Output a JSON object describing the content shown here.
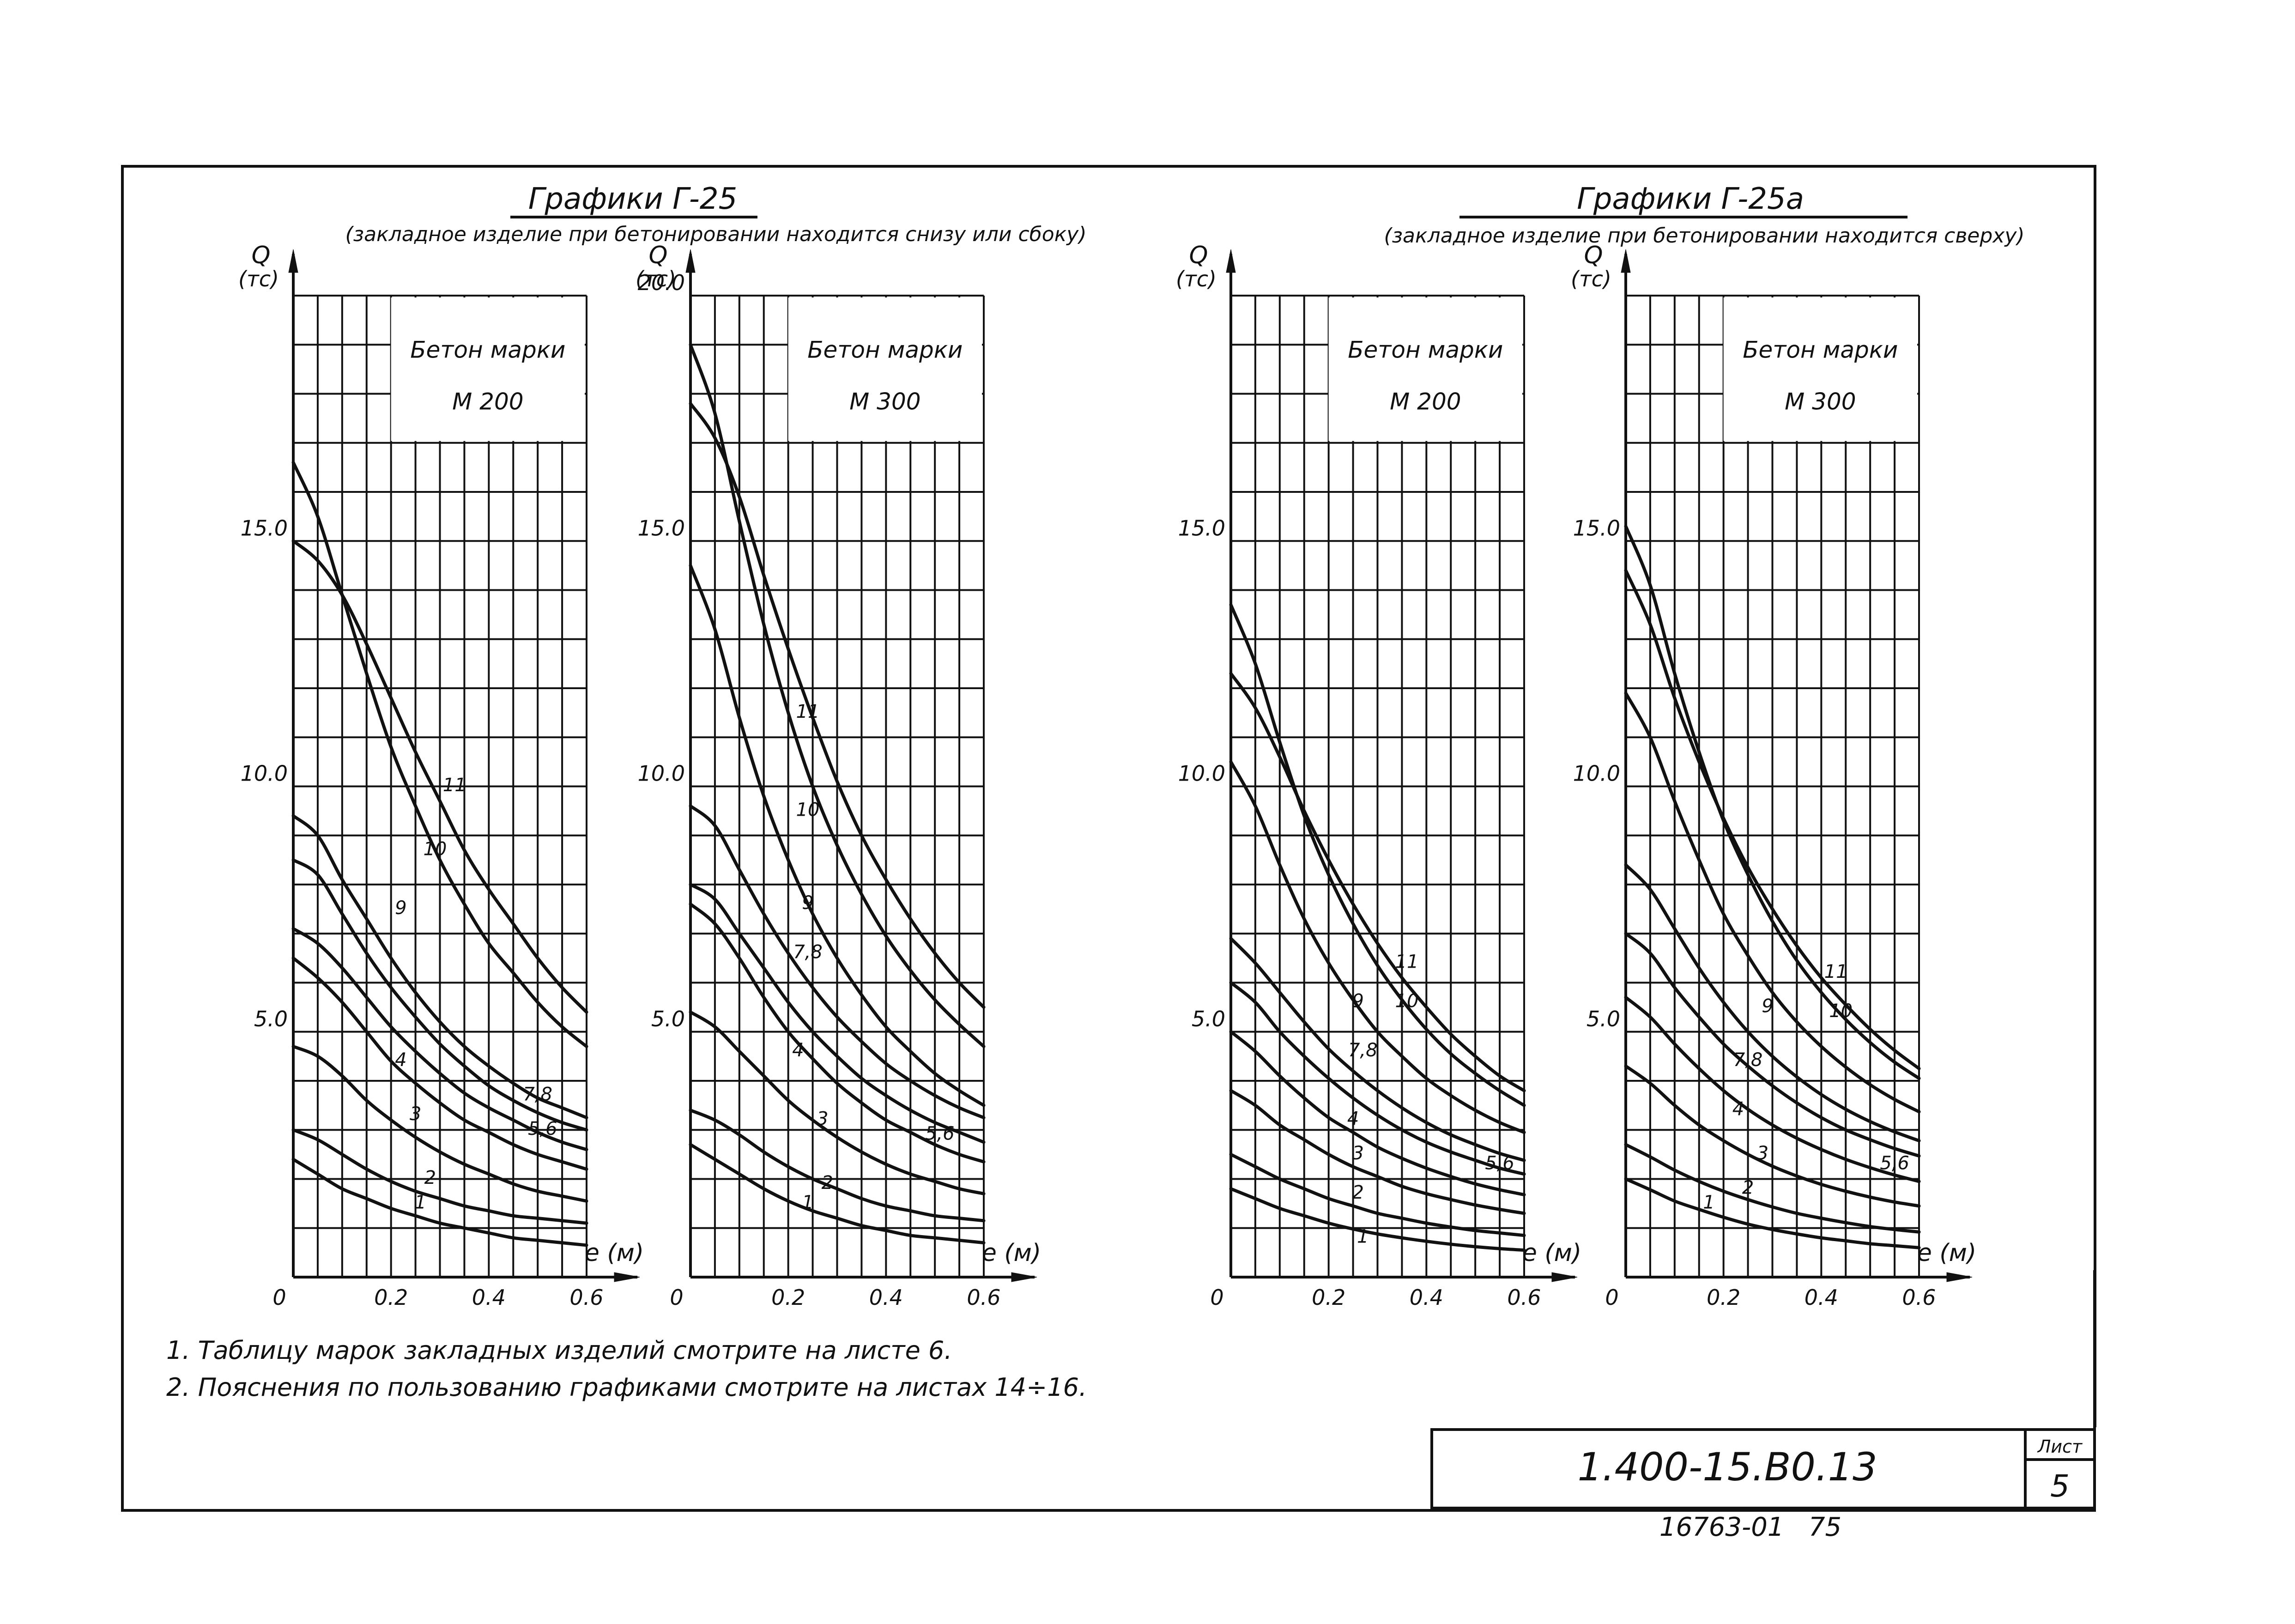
{
  "sheet": {
    "notes": [
      "1. Таблицу марок закладных изделий смотрите на листе 6.",
      "2. Пояснения по пользованию графиками смотрите на листах 14÷16."
    ],
    "stamp": {
      "code": "1.400-15.В0.13",
      "sheet_label": "Лист",
      "sheet_number": "5"
    },
    "bottom_reference": "16763-01   75"
  },
  "groups": [
    {
      "title": "Графики Г-25",
      "subtitle": "(закладное изделие при бетонировании находится снизу или сбоку)"
    },
    {
      "title": "Графики Г-25а",
      "subtitle": "(закладное изделие при бетонировании находится сверху)"
    }
  ],
  "chart_data": [
    {
      "type": "line",
      "group": 0,
      "title": "Бетон марки М 200",
      "ylabel": "Q (тс)",
      "xlabel": "e (м)",
      "xlim": [
        0,
        0.6
      ],
      "ylim": [
        0,
        20
      ],
      "x_ticks": [
        "0",
        "0.2",
        "0.4",
        "0.6"
      ],
      "y_ticks": [
        {
          "v": 5,
          "label": "5.0"
        },
        {
          "v": 10,
          "label": "10.0"
        },
        {
          "v": 15,
          "label": "15.0"
        }
      ],
      "x": [
        0,
        0.05,
        0.1,
        0.15,
        0.2,
        0.25,
        0.3,
        0.35,
        0.4,
        0.45,
        0.5,
        0.55,
        0.6
      ],
      "series": [
        {
          "name": "1",
          "values": [
            2.4,
            2.1,
            1.8,
            1.6,
            1.4,
            1.25,
            1.1,
            1.0,
            0.9,
            0.8,
            0.75,
            0.7,
            0.65
          ],
          "label_at": [
            0.26,
            1.4
          ]
        },
        {
          "name": "2",
          "values": [
            3.0,
            2.8,
            2.5,
            2.2,
            1.95,
            1.75,
            1.6,
            1.45,
            1.35,
            1.25,
            1.2,
            1.15,
            1.1
          ],
          "label_at": [
            0.28,
            1.9
          ]
        },
        {
          "name": "3",
          "values": [
            4.7,
            4.5,
            4.1,
            3.6,
            3.2,
            2.85,
            2.55,
            2.3,
            2.1,
            1.9,
            1.75,
            1.65,
            1.55
          ],
          "label_at": [
            0.25,
            3.2
          ]
        },
        {
          "name": "4",
          "values": [
            6.5,
            6.1,
            5.6,
            5.0,
            4.4,
            3.95,
            3.55,
            3.2,
            2.95,
            2.7,
            2.5,
            2.35,
            2.2
          ],
          "label_at": [
            0.22,
            4.3
          ]
        },
        {
          "name": "5, 6",
          "values": [
            7.1,
            6.8,
            6.3,
            5.7,
            5.1,
            4.6,
            4.15,
            3.75,
            3.45,
            3.2,
            2.95,
            2.75,
            2.6
          ],
          "label_at": [
            0.51,
            2.9
          ]
        },
        {
          "name": "7, 8",
          "values": [
            8.5,
            8.2,
            7.4,
            6.6,
            5.9,
            5.3,
            4.75,
            4.3,
            3.9,
            3.6,
            3.35,
            3.15,
            3.0
          ],
          "label_at": [
            0.5,
            3.6
          ]
        },
        {
          "name": "9",
          "values": [
            9.4,
            9.0,
            8.1,
            7.3,
            6.5,
            5.8,
            5.2,
            4.7,
            4.3,
            3.95,
            3.65,
            3.45,
            3.25
          ],
          "label_at": [
            0.22,
            7.4
          ]
        },
        {
          "name": "10",
          "values": [
            16.6,
            15.5,
            13.9,
            12.3,
            10.8,
            9.6,
            8.5,
            7.6,
            6.8,
            6.2,
            5.6,
            5.1,
            4.7
          ],
          "label_at": [
            0.29,
            8.6
          ]
        },
        {
          "name": "11",
          "values": [
            15.0,
            14.6,
            13.9,
            12.9,
            11.8,
            10.7,
            9.7,
            8.7,
            7.9,
            7.2,
            6.5,
            5.9,
            5.4
          ],
          "label_at": [
            0.33,
            9.9
          ]
        }
      ]
    },
    {
      "type": "line",
      "group": 0,
      "title": "Бетон марки М 300",
      "ylabel": "Q (тс)",
      "xlabel": "e (м)",
      "xlim": [
        0,
        0.6
      ],
      "ylim": [
        0,
        20
      ],
      "x_ticks": [
        "0",
        "0.2",
        "0.4",
        "0.6"
      ],
      "y_ticks": [
        {
          "v": 5,
          "label": "5.0"
        },
        {
          "v": 10,
          "label": "10.0"
        },
        {
          "v": 15,
          "label": "15.0"
        },
        {
          "v": 20,
          "label": "20.0"
        }
      ],
      "x": [
        0,
        0.05,
        0.1,
        0.15,
        0.2,
        0.25,
        0.3,
        0.35,
        0.4,
        0.45,
        0.5,
        0.55,
        0.6
      ],
      "series": [
        {
          "name": "1",
          "values": [
            2.7,
            2.4,
            2.1,
            1.8,
            1.55,
            1.35,
            1.2,
            1.05,
            0.95,
            0.85,
            0.8,
            0.75,
            0.7
          ],
          "label_at": [
            0.24,
            1.4
          ]
        },
        {
          "name": "2",
          "values": [
            3.4,
            3.2,
            2.9,
            2.55,
            2.25,
            2.0,
            1.8,
            1.6,
            1.45,
            1.35,
            1.25,
            1.2,
            1.15
          ],
          "label_at": [
            0.28,
            1.8
          ]
        },
        {
          "name": "3",
          "values": [
            5.4,
            5.1,
            4.6,
            4.1,
            3.6,
            3.2,
            2.85,
            2.55,
            2.3,
            2.1,
            1.95,
            1.8,
            1.7
          ],
          "label_at": [
            0.27,
            3.1
          ]
        },
        {
          "name": "4",
          "values": [
            7.6,
            7.2,
            6.5,
            5.7,
            5.0,
            4.45,
            3.95,
            3.55,
            3.2,
            2.95,
            2.7,
            2.5,
            2.35
          ],
          "label_at": [
            0.22,
            4.5
          ]
        },
        {
          "name": "5, 6",
          "values": [
            8.0,
            7.7,
            7.0,
            6.3,
            5.6,
            5.0,
            4.5,
            4.05,
            3.7,
            3.4,
            3.15,
            2.95,
            2.75
          ],
          "label_at": [
            0.51,
            2.8
          ]
        },
        {
          "name": "7, 8",
          "values": [
            9.6,
            9.2,
            8.3,
            7.4,
            6.6,
            5.9,
            5.3,
            4.8,
            4.35,
            4.0,
            3.7,
            3.45,
            3.25
          ],
          "label_at": [
            0.24,
            6.5
          ]
        },
        {
          "name": "9",
          "values": [
            14.5,
            13.2,
            11.4,
            9.8,
            8.5,
            7.4,
            6.5,
            5.75,
            5.1,
            4.6,
            4.15,
            3.8,
            3.5
          ],
          "label_at": [
            0.24,
            7.5
          ]
        },
        {
          "name": "10",
          "values": [
            19.0,
            17.6,
            15.4,
            13.3,
            11.5,
            10.0,
            8.8,
            7.8,
            6.95,
            6.25,
            5.65,
            5.15,
            4.7
          ],
          "label_at": [
            0.24,
            9.4
          ]
        },
        {
          "name": "11",
          "values": [
            17.8,
            17.1,
            15.9,
            14.3,
            12.8,
            11.4,
            10.1,
            9.0,
            8.1,
            7.3,
            6.6,
            6.0,
            5.5
          ],
          "label_at": [
            0.24,
            11.4
          ]
        }
      ]
    },
    {
      "type": "line",
      "group": 1,
      "title": "Бетон марки М 200",
      "ylabel": "Q (тс)",
      "xlabel": "e (м)",
      "xlim": [
        0,
        0.6
      ],
      "ylim": [
        0,
        20
      ],
      "x_ticks": [
        "0",
        "0.2",
        "0.4",
        "0.6"
      ],
      "y_ticks": [
        {
          "v": 5,
          "label": "5.0"
        },
        {
          "v": 10,
          "label": "10.0"
        },
        {
          "v": 15,
          "label": "15.0"
        }
      ],
      "x": [
        0,
        0.05,
        0.1,
        0.15,
        0.2,
        0.25,
        0.3,
        0.35,
        0.4,
        0.45,
        0.5,
        0.55,
        0.6
      ],
      "series": [
        {
          "name": "1",
          "values": [
            1.8,
            1.6,
            1.4,
            1.25,
            1.1,
            0.98,
            0.88,
            0.8,
            0.73,
            0.67,
            0.62,
            0.58,
            0.55
          ],
          "label_at": [
            0.27,
            0.7
          ]
        },
        {
          "name": "2",
          "values": [
            2.5,
            2.25,
            2.0,
            1.8,
            1.6,
            1.45,
            1.3,
            1.2,
            1.1,
            1.02,
            0.95,
            0.9,
            0.85
          ],
          "label_at": [
            0.26,
            1.6
          ]
        },
        {
          "name": "3",
          "values": [
            3.8,
            3.5,
            3.1,
            2.8,
            2.5,
            2.25,
            2.05,
            1.85,
            1.7,
            1.58,
            1.47,
            1.38,
            1.3
          ],
          "label_at": [
            0.26,
            2.4
          ]
        },
        {
          "name": "4",
          "values": [
            5.0,
            4.6,
            4.1,
            3.65,
            3.25,
            2.95,
            2.65,
            2.42,
            2.22,
            2.05,
            1.9,
            1.78,
            1.68
          ],
          "label_at": [
            0.25,
            3.1
          ]
        },
        {
          "name": "5, 6",
          "values": [
            6.0,
            5.6,
            5.0,
            4.5,
            4.05,
            3.65,
            3.3,
            3.0,
            2.75,
            2.55,
            2.38,
            2.22,
            2.1
          ],
          "label_at": [
            0.55,
            2.2
          ]
        },
        {
          "name": "7, 8",
          "values": [
            6.9,
            6.4,
            5.8,
            5.2,
            4.65,
            4.2,
            3.8,
            3.45,
            3.15,
            2.9,
            2.7,
            2.52,
            2.38
          ],
          "label_at": [
            0.27,
            4.5
          ]
        },
        {
          "name": "9",
          "values": [
            10.5,
            9.6,
            8.4,
            7.3,
            6.4,
            5.65,
            5.0,
            4.5,
            4.05,
            3.7,
            3.4,
            3.15,
            2.95
          ],
          "label_at": [
            0.26,
            5.5
          ]
        },
        {
          "name": "10",
          "values": [
            13.7,
            12.5,
            10.9,
            9.4,
            8.2,
            7.2,
            6.35,
            5.65,
            5.05,
            4.55,
            4.15,
            3.8,
            3.5
          ],
          "label_at": [
            0.36,
            5.5
          ]
        },
        {
          "name": "11",
          "values": [
            12.3,
            11.6,
            10.6,
            9.5,
            8.5,
            7.6,
            6.8,
            6.1,
            5.5,
            4.95,
            4.5,
            4.1,
            3.8
          ],
          "label_at": [
            0.36,
            6.3
          ]
        }
      ]
    },
    {
      "type": "line",
      "group": 1,
      "title": "Бетон марки М 300",
      "ylabel": "Q (тс)",
      "xlabel": "e (м)",
      "xlim": [
        0,
        0.6
      ],
      "ylim": [
        0,
        20
      ],
      "x_ticks": [
        "0",
        "0.2",
        "0.4",
        "0.6"
      ],
      "y_ticks": [
        {
          "v": 5,
          "label": "5.0"
        },
        {
          "v": 10,
          "label": "10.0"
        },
        {
          "v": 15,
          "label": "15.0"
        }
      ],
      "x": [
        0,
        0.05,
        0.1,
        0.15,
        0.2,
        0.25,
        0.3,
        0.35,
        0.4,
        0.45,
        0.5,
        0.55,
        0.6
      ],
      "series": [
        {
          "name": "1",
          "values": [
            2.0,
            1.78,
            1.55,
            1.38,
            1.22,
            1.08,
            0.97,
            0.88,
            0.8,
            0.74,
            0.68,
            0.64,
            0.6
          ],
          "label_at": [
            0.17,
            1.4
          ]
        },
        {
          "name": "2",
          "values": [
            2.7,
            2.45,
            2.18,
            1.95,
            1.75,
            1.58,
            1.43,
            1.3,
            1.2,
            1.11,
            1.03,
            0.97,
            0.92
          ],
          "label_at": [
            0.25,
            1.7
          ]
        },
        {
          "name": "3",
          "values": [
            4.3,
            3.95,
            3.5,
            3.1,
            2.78,
            2.5,
            2.26,
            2.06,
            1.89,
            1.75,
            1.63,
            1.53,
            1.45
          ],
          "label_at": [
            0.28,
            2.4
          ]
        },
        {
          "name": "4",
          "values": [
            5.7,
            5.3,
            4.75,
            4.25,
            3.8,
            3.42,
            3.1,
            2.83,
            2.6,
            2.4,
            2.23,
            2.08,
            1.95
          ],
          "label_at": [
            0.23,
            3.3
          ]
        },
        {
          "name": "5, 6",
          "values": [
            7.0,
            6.6,
            5.9,
            5.3,
            4.75,
            4.3,
            3.9,
            3.55,
            3.25,
            3.0,
            2.8,
            2.62,
            2.47
          ],
          "label_at": [
            0.55,
            2.2
          ]
        },
        {
          "name": "7, 8",
          "values": [
            8.4,
            7.9,
            7.1,
            6.3,
            5.6,
            5.0,
            4.5,
            4.08,
            3.72,
            3.42,
            3.17,
            2.96,
            2.78
          ],
          "label_at": [
            0.25,
            4.3
          ]
        },
        {
          "name": "9",
          "values": [
            11.9,
            11.0,
            9.7,
            8.5,
            7.4,
            6.55,
            5.8,
            5.2,
            4.7,
            4.28,
            3.92,
            3.62,
            3.37
          ],
          "label_at": [
            0.29,
            5.4
          ]
        },
        {
          "name": "10",
          "values": [
            15.3,
            14.1,
            12.3,
            10.7,
            9.3,
            8.2,
            7.25,
            6.45,
            5.8,
            5.25,
            4.78,
            4.38,
            4.05
          ],
          "label_at": [
            0.44,
            5.3
          ]
        },
        {
          "name": "11",
          "values": [
            14.4,
            13.3,
            11.8,
            10.5,
            9.35,
            8.35,
            7.5,
            6.75,
            6.1,
            5.55,
            5.05,
            4.62,
            4.25
          ],
          "label_at": [
            0.43,
            6.1
          ]
        }
      ]
    }
  ]
}
